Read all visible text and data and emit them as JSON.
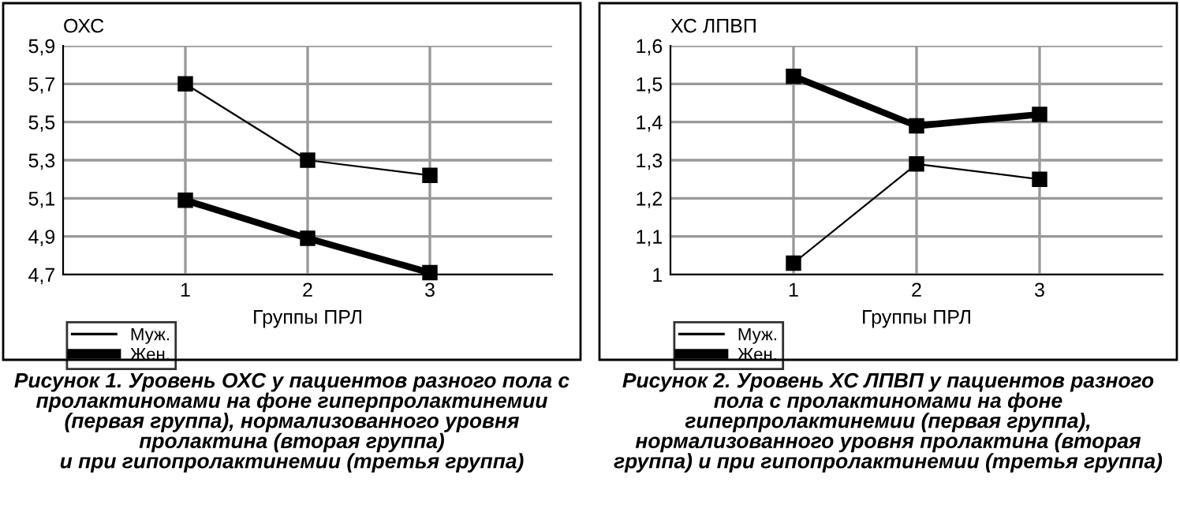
{
  "chart_data": [
    {
      "type": "line",
      "ylabel": "ОХС",
      "xlabel": "Группы ПРЛ",
      "x": [
        1,
        2,
        3
      ],
      "xlim": [
        0,
        4
      ],
      "xticks": [
        1,
        2,
        3
      ],
      "ylim": [
        4.7,
        5.9
      ],
      "yticks": [
        {
          "value": 4.7,
          "label": "4,7"
        },
        {
          "value": 4.9,
          "label": "4,9"
        },
        {
          "value": 5.1,
          "label": "5,1"
        },
        {
          "value": 5.3,
          "label": "5,3"
        },
        {
          "value": 5.5,
          "label": "5,5"
        },
        {
          "value": 5.7,
          "label": "5,7"
        },
        {
          "value": 5.9,
          "label": "5,9"
        }
      ],
      "grid": true,
      "marker": "square",
      "line_style": "solid",
      "legend": "bottom left",
      "series": [
        {
          "name": "Муж.",
          "color": "#000000",
          "values": [
            5.7,
            5.3,
            5.22
          ]
        },
        {
          "name": "Жен.",
          "color": "#000000",
          "values": [
            5.09,
            4.89,
            4.71
          ]
        }
      ],
      "annotations": [
        "Рисунок 1. Уровень ОХС у пациентов разного пола с пролактиномами на фоне гиперпролактинемии (первая группа), нормализованного уровня пролактина (вторая группа)\nи при гипопролактинемии (третья группа)"
      ]
    },
    {
      "type": "line",
      "ylabel": "ХС ЛПВП",
      "xlabel": "Группы ПРЛ",
      "x": [
        1,
        2,
        3
      ],
      "xlim": [
        0,
        4
      ],
      "xticks": [
        1,
        2,
        3
      ],
      "ylim": [
        1,
        1.6
      ],
      "yticks": [
        1,
        {
          "value": 1.1,
          "label": "1,1"
        },
        {
          "value": 1.2,
          "label": "1,2"
        },
        {
          "value": 1.3,
          "label": "1,3"
        },
        {
          "value": 1.4,
          "label": "1,4"
        },
        {
          "value": 1.5,
          "label": "1,5"
        },
        {
          "value": 1.6,
          "label": "1,6"
        }
      ],
      "grid": true,
      "marker": "square",
      "line_style": "solid",
      "legend": "bottom left",
      "series": [
        {
          "name": "Муж.",
          "color": "#000000",
          "values": [
            1.03,
            1.29,
            1.25
          ]
        },
        {
          "name": "Жен.",
          "color": "#000000",
          "values": [
            1.52,
            1.39,
            1.42
          ]
        }
      ],
      "annotations": [
        "Рисунок 2. Уровень ХС ЛПВП у пациентов разного пола с пролактиномами на фоне гиперпролактинемии (первая группа), нормализованного уровня пролактина (вторая группа) и при гипопролактинемии (третья группа)"
      ]
    }
  ]
}
